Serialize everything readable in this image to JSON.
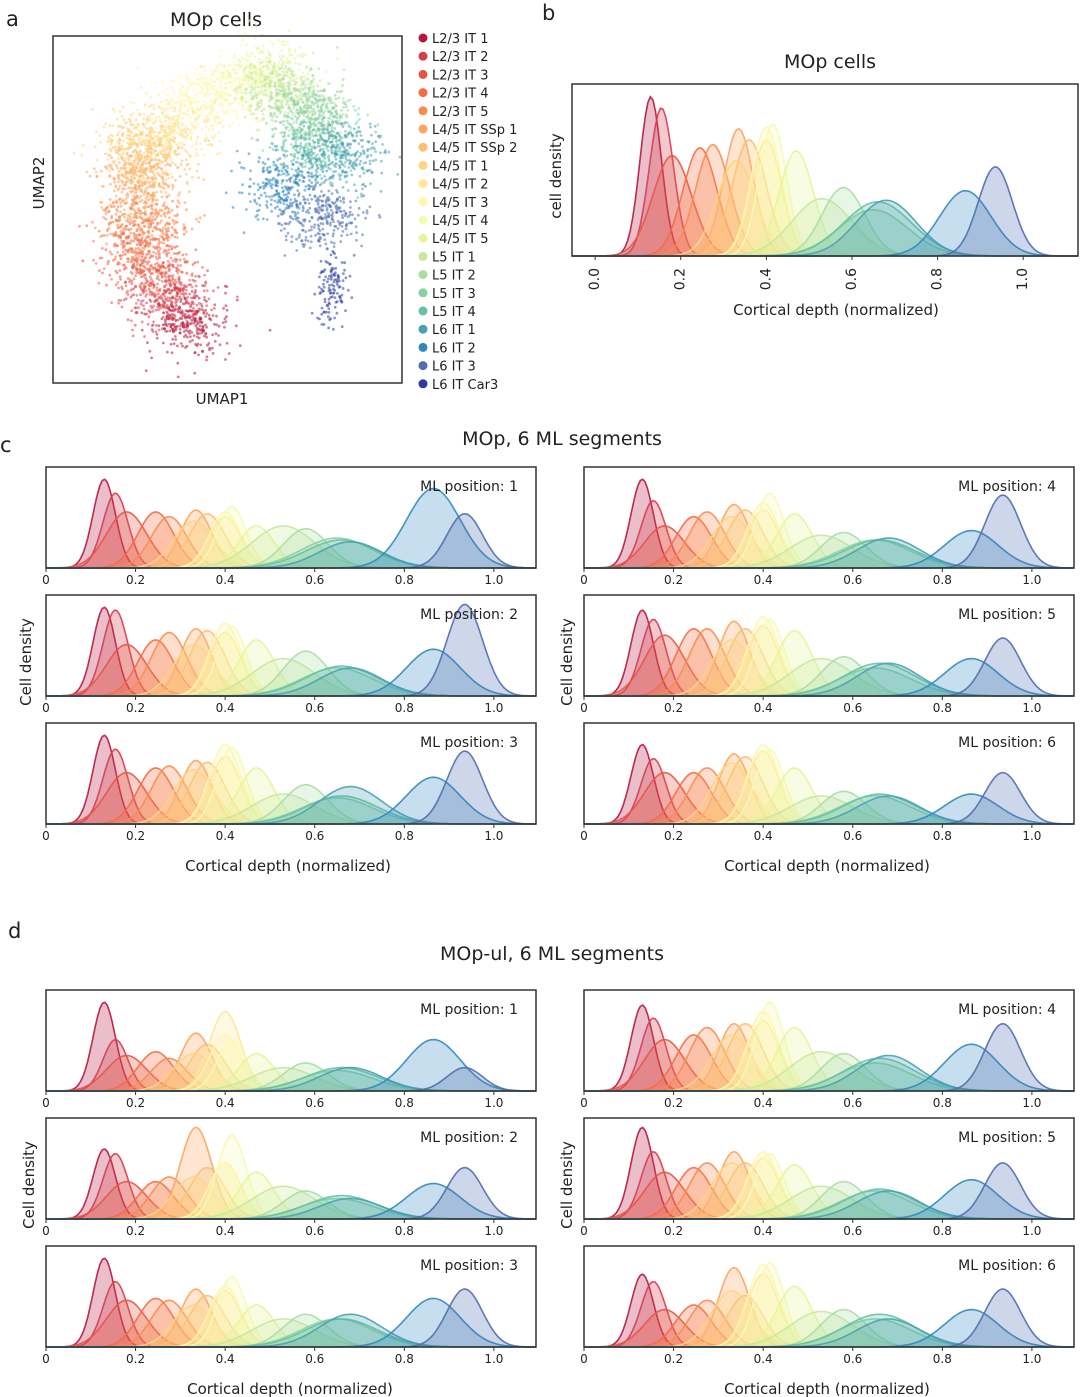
{
  "chart_data": {
    "types": [
      "scatter",
      "kde-line"
    ],
    "legend": [
      "L2/3 IT 1",
      "L2/3 IT 2",
      "L2/3 IT 3",
      "L2/3 IT 4",
      "L2/3 IT 5",
      "L4/5 IT SSp 1",
      "L4/5 IT SSp 2",
      "L4/5 IT 1",
      "L4/5 IT 2",
      "L4/5 IT 3",
      "L4/5 IT 4",
      "L4/5 IT 5",
      "L5 IT 1",
      "L5 IT 2",
      "L5 IT 3",
      "L5 IT 4",
      "L6 IT 1",
      "L6 IT 2",
      "L6 IT 3",
      "L6 IT Car3"
    ],
    "colors": [
      "#b5173f",
      "#d53e4f",
      "#e55545",
      "#f46d43",
      "#f88c51",
      "#fca55d",
      "#fdbe6f",
      "#fed481",
      "#fee797",
      "#fff5ae",
      "#f6fbb2",
      "#e6f598",
      "#c8e89f",
      "#abdda4",
      "#89d0a4",
      "#66c2a5",
      "#49a2b1",
      "#3288bd",
      "#4f6db0",
      "#2c3ba0"
    ],
    "panel_a": {
      "letter": "a",
      "title": "MOp cells",
      "xlabel": "UMAP1",
      "ylabel": "UMAP2",
      "centroids": [
        [
          3.9,
          1.7
        ],
        [
          3.4,
          2.4
        ],
        [
          2.8,
          3.1
        ],
        [
          2.5,
          4.0
        ],
        [
          2.6,
          4.7
        ],
        [
          2.5,
          5.8
        ],
        [
          2.8,
          6.4
        ],
        [
          2.5,
          7.0
        ],
        [
          3.4,
          7.3
        ],
        [
          4.2,
          8.2
        ],
        [
          5.4,
          8.7
        ],
        [
          6.1,
          8.9
        ],
        [
          6.5,
          8.4
        ],
        [
          7.1,
          7.9
        ],
        [
          7.6,
          7.6
        ],
        [
          7.4,
          6.7
        ],
        [
          8.4,
          6.6
        ],
        [
          6.6,
          5.6
        ],
        [
          7.7,
          4.8
        ],
        [
          8.0,
          2.7
        ]
      ]
    },
    "density_means": [
      0.13,
      0.155,
      0.18,
      0.245,
      0.275,
      0.335,
      0.36,
      0.33,
      0.4,
      0.4,
      0.415,
      0.47,
      0.53,
      0.58,
      0.65,
      0.66,
      0.68,
      0.865,
      0.935
    ],
    "density_sds": [
      0.025,
      0.028,
      0.045,
      0.04,
      0.04,
      0.035,
      0.04,
      0.045,
      0.035,
      0.035,
      0.032,
      0.04,
      0.07,
      0.05,
      0.08,
      0.08,
      0.07,
      0.06,
      0.04
    ],
    "panel_b": {
      "letter": "b",
      "title": "MOp cells",
      "xlabel": "Cortical depth (normalized)",
      "ylabel": "cell density",
      "xlim": [
        -0.054,
        1.128
      ],
      "xticks": [
        "0.0",
        "0.2",
        "0.4",
        "0.6",
        "0.8",
        "1.0"
      ],
      "heights": [
        1.0,
        0.93,
        0.63,
        0.68,
        0.7,
        0.8,
        0.73,
        0.6,
        0.73,
        0.81,
        0.83,
        0.66,
        0.36,
        0.43,
        0.29,
        0.34,
        0.35,
        0.41,
        0.56
      ]
    },
    "panel_c": {
      "letter": "c",
      "title": "MOp, 6 ML segments",
      "xlabel": "Cortical depth (normalized)",
      "ylabel": "Cell density",
      "xlim": [
        0,
        1.094
      ],
      "xticks": [
        "0",
        "0.2",
        "0.4",
        "0.6",
        "0.8",
        "1.0"
      ],
      "subplots": [
        {
          "label": "ML position: 1",
          "heights": [
            0.95,
            0.8,
            0.6,
            0.6,
            0.55,
            0.62,
            0.58,
            0.5,
            0.55,
            0.6,
            0.66,
            0.45,
            0.45,
            0.42,
            0.32,
            0.3,
            0.28,
            0.85,
            0.58
          ]
        },
        {
          "label": "ML position: 2",
          "heights": [
            0.95,
            0.92,
            0.55,
            0.6,
            0.68,
            0.72,
            0.7,
            0.55,
            0.68,
            0.78,
            0.75,
            0.6,
            0.4,
            0.48,
            0.3,
            0.32,
            0.3,
            0.5,
            0.98
          ]
        },
        {
          "label": "ML position: 3",
          "heights": [
            0.95,
            0.8,
            0.55,
            0.6,
            0.62,
            0.68,
            0.66,
            0.58,
            0.72,
            0.85,
            0.82,
            0.6,
            0.32,
            0.42,
            0.28,
            0.3,
            0.4,
            0.5,
            0.78
          ]
        },
        {
          "label": "ML position: 4",
          "heights": [
            0.95,
            0.72,
            0.45,
            0.55,
            0.6,
            0.68,
            0.62,
            0.55,
            0.62,
            0.7,
            0.8,
            0.58,
            0.35,
            0.38,
            0.3,
            0.3,
            0.32,
            0.4,
            0.78
          ]
        },
        {
          "label": "ML position: 5",
          "heights": [
            0.92,
            0.82,
            0.65,
            0.72,
            0.72,
            0.8,
            0.72,
            0.6,
            0.75,
            0.85,
            0.82,
            0.7,
            0.4,
            0.42,
            0.3,
            0.35,
            0.35,
            0.4,
            0.62
          ]
        },
        {
          "label": "ML position: 6",
          "heights": [
            0.85,
            0.7,
            0.55,
            0.55,
            0.6,
            0.75,
            0.72,
            0.65,
            0.78,
            0.85,
            0.8,
            0.6,
            0.3,
            0.35,
            0.3,
            0.32,
            0.3,
            0.32,
            0.55
          ]
        }
      ]
    },
    "panel_d": {
      "letter": "d",
      "title": "MOp-ul, 6 ML segments",
      "xlabel": "Cortical depth (normalized)",
      "ylabel": "Cell density",
      "xlim": [
        0,
        1.094
      ],
      "xticks": [
        "0",
        "0.2",
        "0.4",
        "0.6",
        "0.8",
        "1.0"
      ],
      "subplots": [
        {
          "label": "ML position: 1",
          "heights": [
            0.95,
            0.55,
            0.38,
            0.42,
            0.35,
            0.62,
            0.5,
            0.4,
            0.85,
            0.6,
            0.55,
            0.4,
            0.25,
            0.3,
            0.22,
            0.25,
            0.25,
            0.55,
            0.25
          ]
        },
        {
          "label": "ML position: 2",
          "heights": [
            0.75,
            0.7,
            0.4,
            0.4,
            0.45,
            0.98,
            0.55,
            0.45,
            0.6,
            0.6,
            0.9,
            0.5,
            0.35,
            0.3,
            0.22,
            0.25,
            0.22,
            0.38,
            0.55
          ]
        },
        {
          "label": "ML position: 3",
          "heights": [
            0.95,
            0.7,
            0.5,
            0.52,
            0.5,
            0.62,
            0.55,
            0.45,
            0.6,
            0.65,
            0.75,
            0.45,
            0.3,
            0.35,
            0.3,
            0.3,
            0.35,
            0.52,
            0.62
          ]
        },
        {
          "label": "ML position: 4",
          "heights": [
            0.92,
            0.78,
            0.55,
            0.6,
            0.68,
            0.72,
            0.72,
            0.6,
            0.75,
            0.85,
            0.95,
            0.68,
            0.42,
            0.4,
            0.3,
            0.35,
            0.38,
            0.5,
            0.72
          ]
        },
        {
          "label": "ML position: 5",
          "heights": [
            0.98,
            0.72,
            0.5,
            0.55,
            0.6,
            0.72,
            0.6,
            0.6,
            0.65,
            0.72,
            0.7,
            0.58,
            0.35,
            0.4,
            0.3,
            0.32,
            0.3,
            0.42,
            0.6
          ]
        },
        {
          "label": "ML position: 6",
          "heights": [
            0.78,
            0.7,
            0.4,
            0.45,
            0.5,
            0.85,
            0.55,
            0.6,
            0.78,
            0.88,
            0.9,
            0.65,
            0.38,
            0.4,
            0.3,
            0.35,
            0.3,
            0.4,
            0.62
          ]
        }
      ]
    }
  }
}
